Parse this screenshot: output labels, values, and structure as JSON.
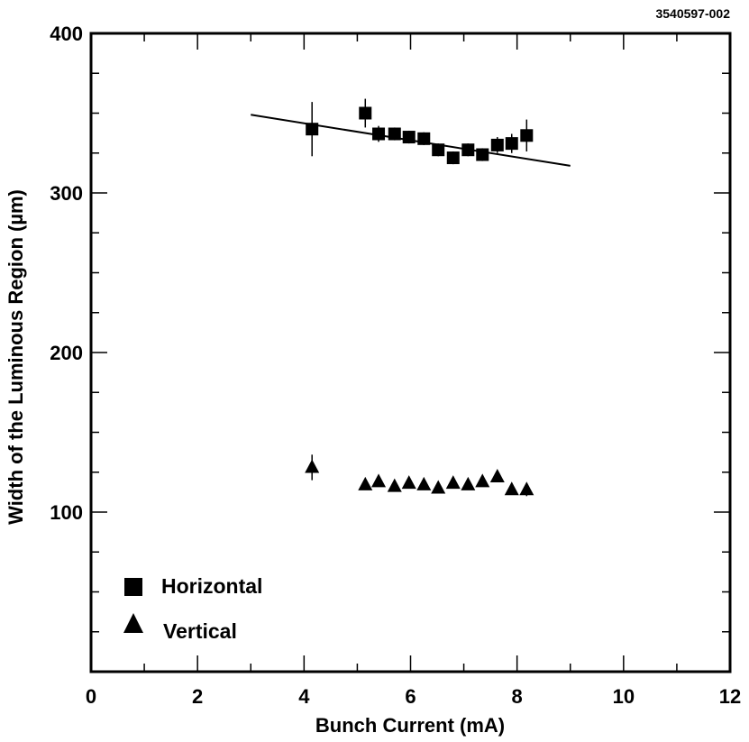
{
  "figure_id": "3540597-002",
  "chart_data": {
    "type": "scatter",
    "title": "",
    "xlabel": "Bunch Current (mA)",
    "ylabel": "Width of the Luminous Region (µm)",
    "xlim": [
      0,
      12
    ],
    "ylim": [
      0,
      400
    ],
    "x_ticks_major": [
      0,
      2,
      4,
      6,
      8,
      10,
      12
    ],
    "x_ticks_minor": [
      1,
      3,
      5,
      7,
      9,
      11
    ],
    "y_ticks_labeled": [
      100,
      200,
      300,
      400
    ],
    "y_ticks_minor": [
      25,
      50,
      75,
      125,
      150,
      175,
      225,
      250,
      275,
      325,
      350,
      375
    ],
    "grid": false,
    "legend_position": "bottom-left",
    "series": [
      {
        "name": "Horizontal",
        "marker": "square",
        "points": [
          {
            "x": 4.15,
            "y": 340,
            "err": 17
          },
          {
            "x": 5.15,
            "y": 350,
            "err": 9
          },
          {
            "x": 5.4,
            "y": 337,
            "err": 5
          },
          {
            "x": 5.7,
            "y": 337,
            "err": 4
          },
          {
            "x": 5.97,
            "y": 335,
            "err": 4
          },
          {
            "x": 6.25,
            "y": 334,
            "err": 4
          },
          {
            "x": 6.52,
            "y": 327,
            "err": 4
          },
          {
            "x": 6.8,
            "y": 322,
            "err": 4
          },
          {
            "x": 7.08,
            "y": 327,
            "err": 4
          },
          {
            "x": 7.35,
            "y": 324,
            "err": 4
          },
          {
            "x": 7.63,
            "y": 330,
            "err": 5
          },
          {
            "x": 7.9,
            "y": 331,
            "err": 6
          },
          {
            "x": 8.18,
            "y": 336,
            "err": 10
          }
        ],
        "fit_line": {
          "x": [
            3,
            9
          ],
          "y": [
            349,
            317
          ]
        }
      },
      {
        "name": "Vertical",
        "marker": "triangle",
        "points": [
          {
            "x": 4.15,
            "y": 128,
            "err": 8
          },
          {
            "x": 5.15,
            "y": 117,
            "err": 2
          },
          {
            "x": 5.4,
            "y": 119,
            "err": 2
          },
          {
            "x": 5.7,
            "y": 116,
            "err": 2
          },
          {
            "x": 5.97,
            "y": 118,
            "err": 2
          },
          {
            "x": 6.25,
            "y": 117,
            "err": 2
          },
          {
            "x": 6.52,
            "y": 115,
            "err": 2
          },
          {
            "x": 6.8,
            "y": 118,
            "err": 2
          },
          {
            "x": 7.08,
            "y": 117,
            "err": 2
          },
          {
            "x": 7.35,
            "y": 119,
            "err": 2
          },
          {
            "x": 7.63,
            "y": 122,
            "err": 3
          },
          {
            "x": 7.9,
            "y": 114,
            "err": 2
          },
          {
            "x": 8.18,
            "y": 114,
            "err": 4
          }
        ]
      }
    ]
  }
}
